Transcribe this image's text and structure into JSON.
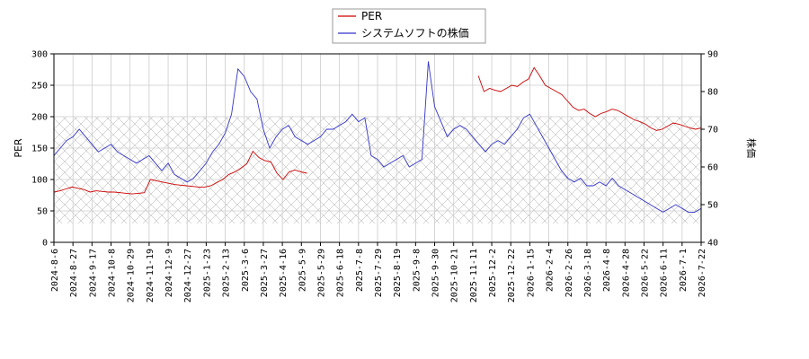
{
  "chart_data": {
    "type": "line",
    "legend": {
      "position": "top-center",
      "entries": [
        {
          "name": "PER",
          "color": "#cc0000"
        },
        {
          "name": "システムソフトの株価",
          "color": "#3333cc"
        }
      ]
    },
    "y_left": {
      "label": "PER",
      "lim": [
        0,
        300
      ],
      "ticks": [
        "0",
        "50",
        "100",
        "150",
        "200",
        "250",
        "300"
      ]
    },
    "y_right": {
      "label": "株価",
      "lim": [
        40,
        90
      ],
      "ticks": [
        "40",
        "50",
        "60",
        "70",
        "80",
        "90"
      ]
    },
    "x_ticks": [
      "2024-8-6",
      "2024-8-27",
      "2024-9-17",
      "2024-10-8",
      "2024-10-29",
      "2024-11-19",
      "2024-12-9",
      "2024-12-27",
      "2025-1-23",
      "2025-2-13",
      "2025-3-6",
      "2025-3-27",
      "2025-4-16",
      "2025-5-9",
      "2025-5-29",
      "2025-6-18",
      "2025-7-8",
      "2025-7-29",
      "2025-8-19",
      "2025-9-8",
      "2025-9-30",
      "2025-10-21",
      "2025-11-11",
      "2025-12-2",
      "2025-12-22",
      "2026-1-15",
      "2026-2-4",
      "2026-2-26",
      "2026-3-18",
      "2026-4-8",
      "2026-4-28",
      "2026-5-22",
      "2026-6-11",
      "2026-7-1",
      "2026-7-22"
    ],
    "grid": true,
    "hatched_band": {
      "axis": "left",
      "from": 30,
      "to": 200
    },
    "series": [
      {
        "name": "PER",
        "axis": "left",
        "color": "#cc0000",
        "segments": [
          {
            "x_start": 0,
            "values": [
              80,
              82,
              85,
              88,
              86,
              84,
              80,
              82,
              81,
              80,
              80,
              79,
              78,
              77,
              78,
              79,
              100,
              98,
              96,
              94,
              92,
              91,
              90,
              89,
              88,
              88,
              90,
              95,
              100,
              108,
              112,
              118,
              125,
              145,
              135,
              130,
              128,
              110,
              100,
              112,
              115,
              112,
              110
            ]
          },
          {
            "x_start": 22.3,
            "values": [
              265,
              240,
              245,
              242,
              240,
              245,
              250,
              248,
              255,
              260,
              278,
              265,
              250,
              245,
              240,
              235,
              225,
              215,
              210,
              212,
              205,
              200,
              205,
              208,
              212,
              210,
              205,
              200,
              195,
              192,
              188,
              182,
              178,
              180,
              185,
              190,
              188,
              185,
              182,
              180,
              182
            ]
          }
        ]
      },
      {
        "name": "システムソフトの株価",
        "axis": "right",
        "color": "#3333cc",
        "values": [
          63,
          65,
          67,
          68,
          70,
          68,
          66,
          64,
          65,
          66,
          64,
          63,
          62,
          61,
          62,
          63,
          61,
          59,
          61,
          58,
          57,
          56,
          57,
          59,
          61,
          64,
          66,
          69,
          74,
          86,
          84,
          80,
          78,
          70,
          65,
          68,
          70,
          71,
          68,
          67,
          66,
          67,
          68,
          70,
          70,
          71,
          72,
          74,
          72,
          73,
          63,
          62,
          60,
          61,
          62,
          63,
          60,
          61,
          62,
          88,
          76,
          72,
          68,
          70,
          71,
          70,
          68,
          66,
          64,
          66,
          67,
          66,
          68,
          70,
          73,
          74,
          71,
          68,
          65,
          62,
          59,
          57,
          56,
          57,
          55,
          55,
          56,
          55,
          57,
          55,
          54,
          53,
          52,
          51,
          50,
          49,
          48,
          49,
          50,
          49,
          48,
          48,
          49
        ]
      }
    ]
  }
}
